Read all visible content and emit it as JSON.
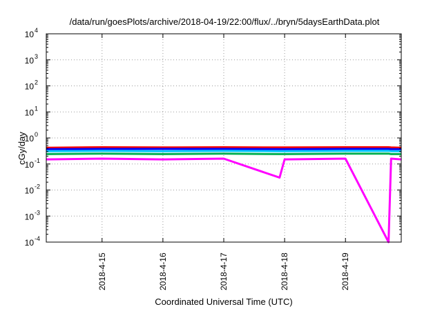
{
  "chart_data": {
    "type": "line",
    "title": "/data/run/goesPlots/archive/2018-04-19/22:00/flux/../bryn/5daysEarthData.plot",
    "xlabel": "Coordinated Universal Time (UTC)",
    "ylabel": "cGy/day",
    "yscale": "log",
    "ylim": [
      0.0001,
      10000
    ],
    "y_ticks": [
      {
        "exp": "-4",
        "value": 0.0001
      },
      {
        "exp": "-3",
        "value": 0.001
      },
      {
        "exp": "-2",
        "value": 0.01
      },
      {
        "exp": "-1",
        "value": 0.1
      },
      {
        "exp": "0",
        "value": 1
      },
      {
        "exp": "1",
        "value": 10
      },
      {
        "exp": "2",
        "value": 100
      },
      {
        "exp": "3",
        "value": 1000
      },
      {
        "exp": "4",
        "value": 10000
      }
    ],
    "y_tick_base": "10",
    "xlim": [
      "2018-04-14 02:00",
      "2018-04-19 22:00"
    ],
    "x_ticks": [
      "2018-4-15",
      "2018-4-16",
      "2018-4-17",
      "2018-4-18",
      "2018-4-19"
    ],
    "grid": true,
    "x": [
      "2018-04-14 02:00",
      "2018-04-15 00:00",
      "2018-04-16 00:00",
      "2018-04-17 00:00",
      "2018-04-17 22:00",
      "2018-04-18 00:00",
      "2018-04-19 00:00",
      "2018-04-19 17:00",
      "2018-04-19 18:00",
      "2018-04-19 22:00"
    ],
    "series": [
      {
        "color": "#ff0000",
        "values": [
          0.42,
          0.44,
          0.43,
          0.44,
          0.43,
          0.43,
          0.44,
          0.44,
          0.43,
          0.42
        ]
      },
      {
        "color": "#0000ff",
        "values": [
          0.37,
          0.38,
          0.38,
          0.38,
          0.37,
          0.37,
          0.38,
          0.38,
          0.37,
          0.37
        ]
      },
      {
        "color": "#00c8ff",
        "values": [
          0.31,
          0.32,
          0.31,
          0.32,
          0.31,
          0.31,
          0.32,
          0.32,
          0.31,
          0.31
        ]
      },
      {
        "color": "#00b050",
        "values": [
          0.24,
          0.25,
          0.24,
          0.25,
          0.24,
          0.24,
          0.25,
          0.25,
          0.24,
          0.24
        ]
      },
      {
        "color": "#ff00ff",
        "values": [
          0.15,
          0.16,
          0.15,
          0.16,
          0.03,
          0.15,
          0.16,
          0.0001,
          0.16,
          0.15
        ]
      }
    ]
  }
}
